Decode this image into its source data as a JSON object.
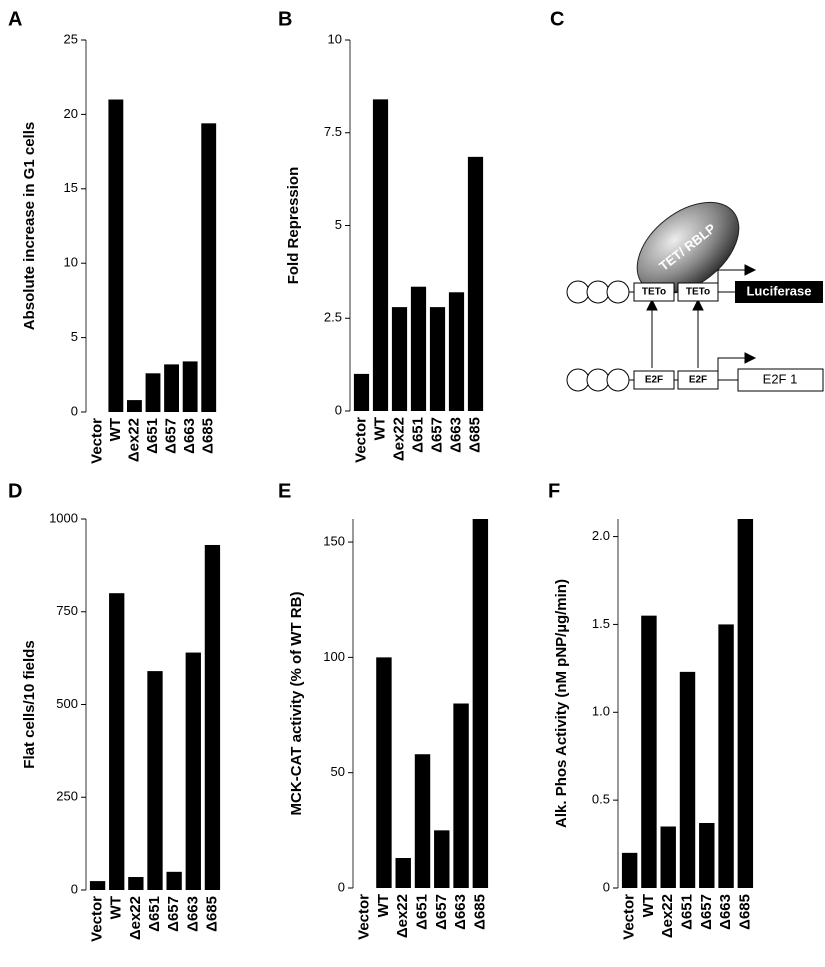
{
  "chart_data": [
    {
      "type": "bar",
      "label": "A",
      "ylabel": "Absolute increase in G1 cells",
      "categories": [
        "Vector",
        "WT",
        "Δex22",
        "Δ651",
        "Δ657",
        "Δ663",
        "Δ685"
      ],
      "values": [
        0,
        21,
        0.8,
        2.6,
        3.2,
        3.4,
        19.4
      ],
      "color": "#000000",
      "ylim": [
        0,
        25
      ],
      "yticks": [
        0,
        5,
        10,
        15,
        20,
        25
      ]
    },
    {
      "type": "bar",
      "label": "B",
      "ylabel": "Fold Repression",
      "categories": [
        "Vector",
        "WT",
        "Δex22",
        "Δ651",
        "Δ657",
        "Δ663",
        "Δ685"
      ],
      "values": [
        1,
        8.4,
        2.8,
        3.35,
        2.8,
        3.2,
        6.85
      ],
      "color": "#000000",
      "ylim": [
        0,
        10
      ],
      "yticks": [
        0,
        2.5,
        5,
        7.5,
        10
      ]
    },
    {
      "type": "bar",
      "label": "D",
      "ylabel": "Flat cells/10 fields",
      "categories": [
        "Vector",
        "WT",
        "Δex22",
        "Δ651",
        "Δ657",
        "Δ663",
        "Δ685"
      ],
      "values": [
        24,
        800,
        35,
        590,
        49,
        640,
        930
      ],
      "color": "#000000",
      "ylim": [
        0,
        1000
      ],
      "yticks": [
        0,
        250,
        500,
        750,
        1000
      ]
    },
    {
      "type": "bar",
      "label": "E",
      "ylabel": "MCK-CAT activity (% of WT RB)",
      "categories": [
        "Vector",
        "WT",
        "Δex22",
        "Δ651",
        "Δ657",
        "Δ663",
        "Δ685"
      ],
      "values": [
        0,
        100,
        13,
        58,
        25,
        80,
        160
      ],
      "color": "#000000",
      "ylim": [
        0,
        160
      ],
      "yticks": [
        0,
        50,
        100,
        150
      ]
    },
    {
      "type": "bar",
      "label": "F",
      "ylabel": "Alk. Phos Activity (nM pNP/µg/min)",
      "categories": [
        "Vector",
        "WT",
        "Δex22",
        "Δ651",
        "Δ657",
        "Δ663",
        "Δ685"
      ],
      "values": [
        0.2,
        1.55,
        0.35,
        1.23,
        0.37,
        1.5,
        2.1
      ],
      "color": "#000000",
      "ylim": [
        0,
        2.1
      ],
      "yticks": [
        0,
        0.5,
        {
          "value": 1,
          "label": "1.0"
        },
        1.5,
        {
          "value": 2,
          "label": "2.0"
        }
      ]
    }
  ],
  "diagram": {
    "label": "C",
    "protein": "TET/ RBLP",
    "row1": [
      "TETo",
      "TETo",
      "Luciferase"
    ],
    "row2": [
      "E2F",
      "E2F",
      "E2F 1"
    ]
  }
}
